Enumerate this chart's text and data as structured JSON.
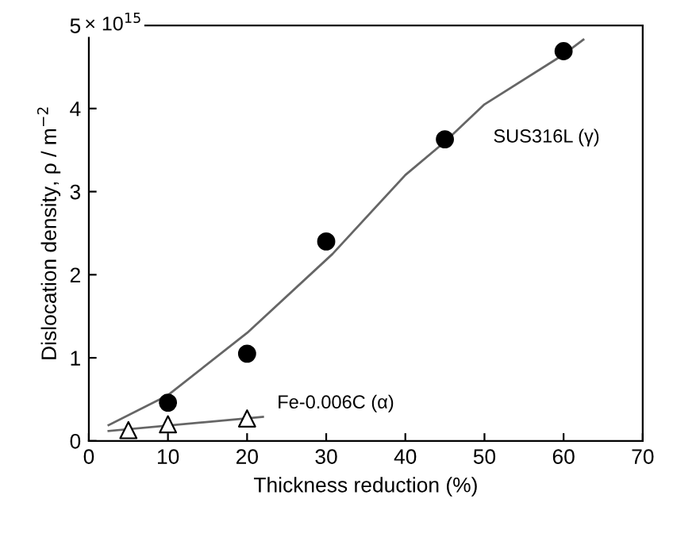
{
  "chart_data": {
    "type": "scatter",
    "xlabel": "Thickness reduction (%)",
    "ylabel": "Dislocation density, ρ / m$^{−2}$",
    "xlim": [
      0,
      70
    ],
    "xticks": [
      0,
      10,
      20,
      30,
      40,
      50,
      60,
      70
    ],
    "ylim": [
      0,
      5
    ],
    "yticks": [
      0,
      1,
      2,
      3,
      4,
      5
    ],
    "grid": false,
    "series": [
      {
        "marker": "circle",
        "color": "#000000",
        "x": [
          10,
          20,
          30,
          45,
          60
        ],
        "values": [
          0.46,
          1.05,
          2.4,
          3.63,
          4.69
        ]
      },
      {
        "type": "line",
        "marker": "none",
        "color": "#666666",
        "x": [
          2.5,
          10,
          20,
          30.8,
          40,
          45,
          50,
          60,
          62.5
        ],
        "values": [
          0.19,
          0.55,
          1.3,
          2.25,
          3.2,
          3.6,
          4.05,
          4.65,
          4.83
        ]
      },
      {
        "marker": "triangle",
        "color": "#ffffff",
        "x": [
          5,
          10,
          20
        ],
        "values": [
          0.13,
          0.2,
          0.27
        ]
      },
      {
        "type": "line",
        "marker": "none",
        "color": "#666666",
        "x": [
          2.5,
          22
        ],
        "values": [
          0.12,
          0.29
        ]
      }
    ],
    "annotations": [
      "× 10$^{15}$",
      "SUS316L (γ)",
      "Fe-0.006C (α)"
    ]
  }
}
